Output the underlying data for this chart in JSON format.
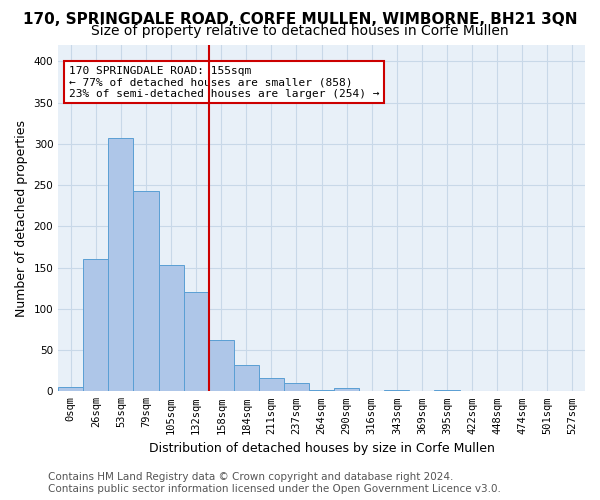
{
  "title": "170, SPRINGDALE ROAD, CORFE MULLEN, WIMBORNE, BH21 3QN",
  "subtitle": "Size of property relative to detached houses in Corfe Mullen",
  "xlabel": "Distribution of detached houses by size in Corfe Mullen",
  "ylabel": "Number of detached properties",
  "footer_line1": "Contains HM Land Registry data © Crown copyright and database right 2024.",
  "footer_line2": "Contains public sector information licensed under the Open Government Licence v3.0.",
  "bin_labels": [
    "0sqm",
    "26sqm",
    "53sqm",
    "79sqm",
    "105sqm",
    "132sqm",
    "158sqm",
    "184sqm",
    "211sqm",
    "237sqm",
    "264sqm",
    "290sqm",
    "316sqm",
    "343sqm",
    "369sqm",
    "395sqm",
    "422sqm",
    "448sqm",
    "474sqm",
    "501sqm",
    "527sqm"
  ],
  "bar_values": [
    5,
    160,
    307,
    243,
    153,
    120,
    62,
    32,
    16,
    10,
    2,
    4,
    0,
    2,
    0,
    2,
    0,
    0,
    0,
    0,
    0
  ],
  "bar_color": "#aec6e8",
  "bar_edge_color": "#5a9fd4",
  "annotation_box_text": "170 SPRINGDALE ROAD: 155sqm\n← 77% of detached houses are smaller (858)\n23% of semi-detached houses are larger (254) →",
  "vline_x": 5.5,
  "vline_color": "#cc0000",
  "annotation_box_color": "#ffffff",
  "annotation_box_edge_color": "#cc0000",
  "ylim": [
    0,
    420
  ],
  "yticks": [
    0,
    50,
    100,
    150,
    200,
    250,
    300,
    350,
    400
  ],
  "grid_color": "#c8d8e8",
  "background_color": "#e8f0f8",
  "title_fontsize": 11,
  "subtitle_fontsize": 10,
  "xlabel_fontsize": 9,
  "ylabel_fontsize": 9,
  "tick_fontsize": 7.5,
  "annotation_fontsize": 8,
  "footer_fontsize": 7.5
}
